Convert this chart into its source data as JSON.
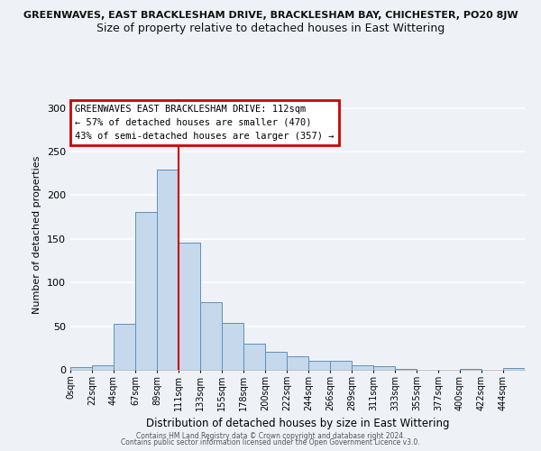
{
  "title_top": "GREENWAVES, EAST BRACKLESHAM DRIVE, BRACKLESHAM BAY, CHICHESTER, PO20 8JW",
  "title_sub": "Size of property relative to detached houses in East Wittering",
  "xlabel": "Distribution of detached houses by size in East Wittering",
  "ylabel": "Number of detached properties",
  "bin_labels": [
    "0sqm",
    "22sqm",
    "44sqm",
    "67sqm",
    "89sqm",
    "111sqm",
    "133sqm",
    "155sqm",
    "178sqm",
    "200sqm",
    "222sqm",
    "244sqm",
    "266sqm",
    "289sqm",
    "311sqm",
    "333sqm",
    "355sqm",
    "377sqm",
    "400sqm",
    "422sqm",
    "444sqm"
  ],
  "bar_values": [
    3,
    5,
    53,
    181,
    229,
    146,
    78,
    54,
    30,
    21,
    15,
    10,
    10,
    5,
    4,
    1,
    0,
    0,
    1,
    0,
    2
  ],
  "bar_color": "#c5d8ec",
  "bar_edge_color": "#6090b8",
  "vline_x": 5.0,
  "vline_color": "#cc0000",
  "ylim": [
    0,
    310
  ],
  "yticks": [
    0,
    50,
    100,
    150,
    200,
    250,
    300
  ],
  "annotation_title": "GREENWAVES EAST BRACKLESHAM DRIVE: 112sqm",
  "annotation_line1": "← 57% of detached houses are smaller (470)",
  "annotation_line2": "43% of semi-detached houses are larger (357) →",
  "annotation_box_color": "#ffffff",
  "annotation_border_color": "#cc0000",
  "footer1": "Contains HM Land Registry data © Crown copyright and database right 2024.",
  "footer2": "Contains public sector information licensed under the Open Government Licence v3.0.",
  "bg_color": "#eef2f7",
  "grid_color": "#ffffff"
}
